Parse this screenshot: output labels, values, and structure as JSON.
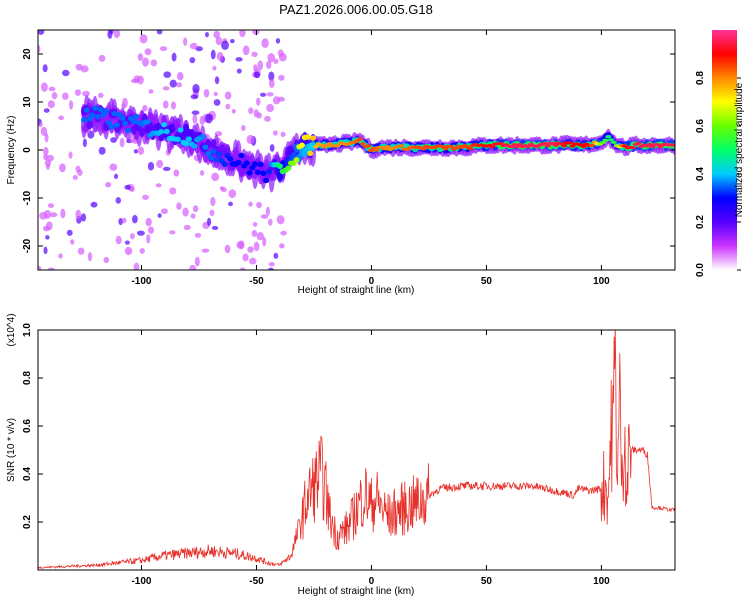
{
  "title": "PAZ1.2026.006.00.05.G18",
  "colors": {
    "line": "#e8302a",
    "axis": "#000000",
    "background": "#ffffff"
  },
  "chart_data": [
    {
      "type": "heatmap",
      "name": "spectrogram",
      "xlabel": "Height of straight line (km)",
      "ylabel": "Frequency (Hz)",
      "xlim": [
        -145,
        132
      ],
      "ylim": [
        -25,
        25
      ],
      "xticks": [
        -100,
        -50,
        0,
        50,
        100
      ],
      "xtick_labels": [
        "-100",
        "-50",
        "0",
        "50",
        "100"
      ],
      "yticks": [
        -20,
        -10,
        0,
        10,
        20
      ],
      "ytick_labels": [
        "-20",
        "-10",
        "0",
        "10",
        "20"
      ],
      "colorbar": {
        "label": "Normalized spectral amplitude",
        "range": [
          0,
          1
        ],
        "ticks": [
          0.0,
          0.2,
          0.4,
          0.6,
          0.8
        ],
        "tick_labels": [
          "0.0",
          "0.2",
          "0.4",
          "0.6",
          "0.8"
        ],
        "colors": [
          "#ffffff",
          "#cc33ff",
          "#5500ff",
          "#0000ff",
          "#00ccff",
          "#00ff66",
          "#66ff00",
          "#ffff00",
          "#ff8800",
          "#ff0000",
          "#ff3399"
        ]
      },
      "ridge": {
        "x": [
          -120,
          -110,
          -100,
          -90,
          -80,
          -70,
          -60,
          -50,
          -45,
          -40,
          -35,
          -30,
          -25,
          -20,
          -10,
          -5,
          0,
          5,
          10,
          20,
          30,
          40,
          50,
          60,
          70,
          80,
          85,
          90,
          95,
          100,
          103,
          105,
          110,
          115,
          120,
          130
        ],
        "freq": [
          7,
          6,
          5,
          4,
          3,
          0,
          -2,
          -4,
          -5,
          -4,
          -2,
          1,
          1,
          1,
          1.5,
          2,
          0,
          0.5,
          0.5,
          0.5,
          0.5,
          0.5,
          1,
          1,
          1,
          1,
          1.2,
          1,
          1.2,
          1.5,
          3,
          1.5,
          0.5,
          1,
          1,
          1
        ],
        "amplitude": [
          0.35,
          0.35,
          0.35,
          0.4,
          0.4,
          0.35,
          0.3,
          0.3,
          0.3,
          0.5,
          0.6,
          0.7,
          0.75,
          0.8,
          0.8,
          0.85,
          0.85,
          0.8,
          0.8,
          0.85,
          0.85,
          0.85,
          0.9,
          0.95,
          0.95,
          0.95,
          0.9,
          0.9,
          0.9,
          0.6,
          0.5,
          0.5,
          0.9,
          0.95,
          0.95,
          0.95
        ]
      }
    },
    {
      "type": "line",
      "name": "snr",
      "xlabel": "Height of straight line (km)",
      "ylabel": "SNR (10 * v/v)",
      "multiplier": "(x10^4)",
      "xlim": [
        -145,
        132
      ],
      "ylim": [
        0,
        1.0
      ],
      "xticks": [
        -100,
        -50,
        0,
        50,
        100
      ],
      "xtick_labels": [
        "-100",
        "-50",
        "0",
        "50",
        "100"
      ],
      "yticks": [
        0.2,
        0.4,
        0.6,
        0.8,
        1.0
      ],
      "ytick_labels": [
        "0.2",
        "0.4",
        "0.6",
        "0.8",
        "1.0"
      ],
      "series": [
        {
          "name": "SNR",
          "x": [
            -145,
            -120,
            -100,
            -90,
            -80,
            -70,
            -60,
            -50,
            -45,
            -40,
            -35,
            -30,
            -28,
            -25,
            -22,
            -20,
            -18,
            -15,
            -10,
            -5,
            -3,
            0,
            2,
            5,
            8,
            10,
            15,
            20,
            25,
            30,
            40,
            50,
            60,
            70,
            80,
            85,
            88,
            90,
            95,
            100,
            102,
            103,
            104,
            105,
            106,
            107,
            108,
            109,
            110,
            111,
            112,
            115,
            118,
            120,
            122,
            125,
            130,
            132
          ],
          "y": [
            0.01,
            0.02,
            0.04,
            0.06,
            0.07,
            0.08,
            0.07,
            0.05,
            0.03,
            0.02,
            0.06,
            0.22,
            0.3,
            0.35,
            0.4,
            0.33,
            0.22,
            0.14,
            0.18,
            0.28,
            0.32,
            0.27,
            0.3,
            0.25,
            0.22,
            0.24,
            0.26,
            0.28,
            0.31,
            0.34,
            0.35,
            0.35,
            0.35,
            0.35,
            0.33,
            0.32,
            0.31,
            0.34,
            0.33,
            0.34,
            0.36,
            0.3,
            0.55,
            0.6,
            0.85,
            0.4,
            0.7,
            0.35,
            0.65,
            0.3,
            0.5,
            0.5,
            0.5,
            0.48,
            0.26,
            0.26,
            0.25,
            0.25
          ]
        }
      ]
    }
  ]
}
